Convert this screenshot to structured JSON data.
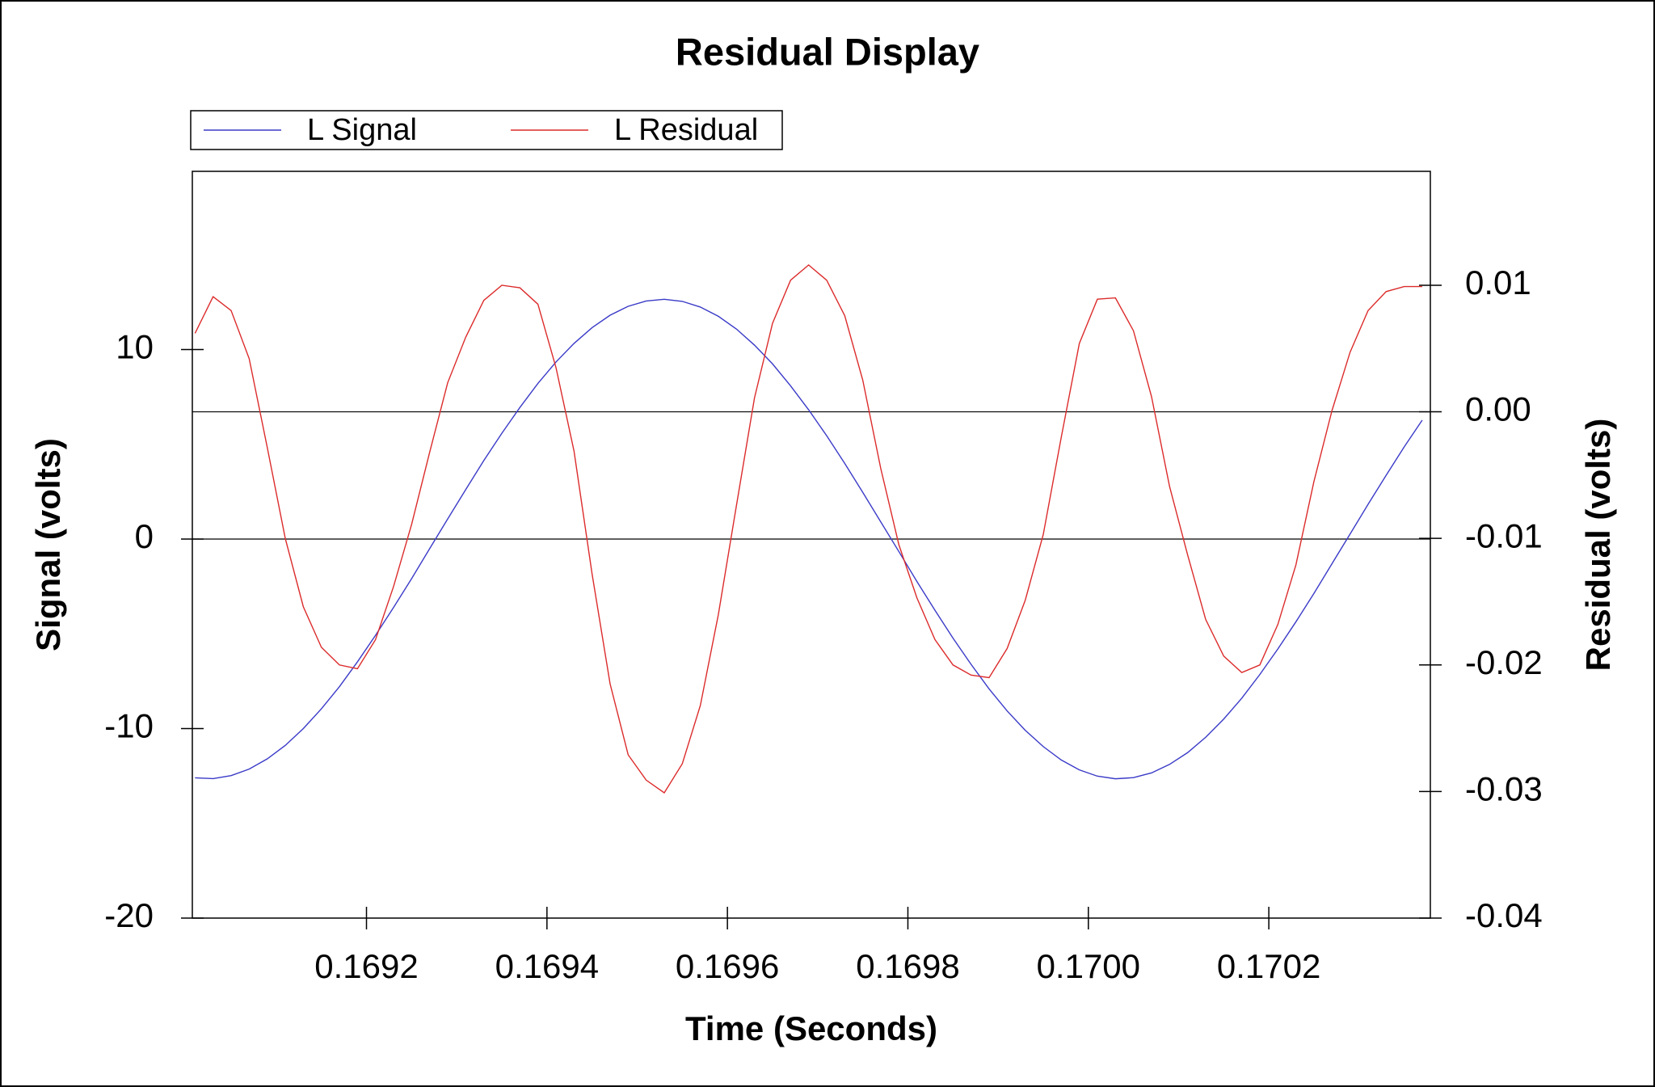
{
  "chart_data": {
    "type": "line",
    "title": "Residual Display",
    "xlabel": "Time (Seconds)",
    "ylabel": "Signal (volts)",
    "y2label": "Residual (volts)",
    "x": [
      0.16901,
      0.16903,
      0.16905,
      0.16907,
      0.16909,
      0.16911,
      0.16913,
      0.16915,
      0.16917,
      0.16919,
      0.16921,
      0.16923,
      0.16925,
      0.16927,
      0.16929,
      0.16931,
      0.16933,
      0.16935,
      0.16937,
      0.16939,
      0.16941,
      0.16943,
      0.16945,
      0.16947,
      0.16949,
      0.16951,
      0.16953,
      0.16955,
      0.16957,
      0.16959,
      0.16961,
      0.16963,
      0.16965,
      0.16967,
      0.16969,
      0.16971,
      0.16973,
      0.16975,
      0.16977,
      0.16979,
      0.16981,
      0.16983,
      0.16985,
      0.16987,
      0.16989,
      0.16991,
      0.16993,
      0.16995,
      0.16997,
      0.16999,
      0.17001,
      0.17003,
      0.17005,
      0.17007,
      0.17009,
      0.17011,
      0.17013,
      0.17015,
      0.17017,
      0.17019,
      0.17021,
      0.17023,
      0.17025,
      0.17027,
      0.17029,
      0.17031,
      0.17033,
      0.17035,
      0.17037
    ],
    "series": [
      {
        "name": "L Signal",
        "color": "#3a3ac8",
        "axis": "y",
        "values": [
          -12.6,
          -12.64,
          -12.48,
          -12.14,
          -11.6,
          -10.89,
          -10.0,
          -8.96,
          -7.79,
          -6.48,
          -5.08,
          -3.61,
          -2.09,
          -0.51,
          1.06,
          2.61,
          4.14,
          5.58,
          6.94,
          8.21,
          9.34,
          10.32,
          11.15,
          11.81,
          12.28,
          12.56,
          12.65,
          12.54,
          12.24,
          11.75,
          11.08,
          10.23,
          9.24,
          8.08,
          6.82,
          5.45,
          3.99,
          2.46,
          0.9,
          -0.66,
          -2.24,
          -3.76,
          -5.23,
          -6.61,
          -7.91,
          -9.07,
          -10.09,
          -10.95,
          -11.66,
          -12.18,
          -12.51,
          -12.65,
          -12.59,
          -12.34,
          -11.89,
          -11.27,
          -10.46,
          -9.5,
          -8.4,
          -7.15,
          -5.8,
          -4.37,
          -2.87,
          -1.3,
          0.26,
          1.83,
          3.36,
          4.86,
          6.27
        ]
      },
      {
        "name": "L Residual",
        "color": "#dc2b2b",
        "axis": "y2",
        "values": [
          0.0062,
          0.0091,
          0.008,
          0.0042,
          -0.0028,
          -0.01,
          -0.0154,
          -0.0186,
          -0.02,
          -0.0203,
          -0.018,
          -0.0138,
          -0.0089,
          -0.0032,
          0.0023,
          0.0059,
          0.0088,
          0.01,
          0.0098,
          0.0085,
          0.0035,
          -0.0031,
          -0.0128,
          -0.0215,
          -0.0271,
          -0.0291,
          -0.0301,
          -0.0278,
          -0.0232,
          -0.016,
          -0.0074,
          0.0011,
          0.007,
          0.0104,
          0.0116,
          0.0104,
          0.0076,
          0.0025,
          -0.0045,
          -0.0105,
          -0.0147,
          -0.018,
          -0.02,
          -0.0208,
          -0.021,
          -0.0187,
          -0.0149,
          -0.0097,
          -0.002,
          0.0054,
          0.0089,
          0.009,
          0.0064,
          0.0012,
          -0.0059,
          -0.0113,
          -0.0164,
          -0.0193,
          -0.0206,
          -0.02,
          -0.0168,
          -0.0121,
          -0.0055,
          0.0001,
          0.0047,
          0.008,
          0.0095,
          0.0099,
          0.0099
        ]
      }
    ],
    "xlim": [
      0.169007,
      0.170379
    ],
    "xticks": [
      0.1692,
      0.1694,
      0.1696,
      0.1698,
      {
        "value": 0.17,
        "label": "0.1700"
      },
      0.1702
    ],
    "ylim": [
      -20,
      19.4
    ],
    "yticks": [
      -20,
      -10,
      0,
      10
    ],
    "y2lim": [
      -0.04,
      0.019
    ],
    "y2ticks": [
      -0.04,
      -0.03,
      -0.02,
      -0.01,
      {
        "value": 0,
        "label": "0.00"
      },
      0.01
    ],
    "zero_lines": true,
    "legend": "top-left"
  }
}
